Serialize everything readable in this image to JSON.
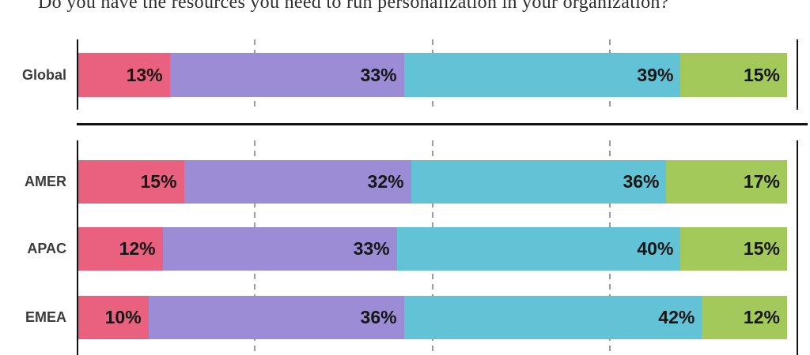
{
  "title": "Do you have the resources you need to run personalization in your organization?",
  "palette": {
    "segment_colors": [
      "#E9617E",
      "#9C8CD6",
      "#62C2D6",
      "#A4C95B"
    ],
    "axis_color": "#121212",
    "gridline_color": "#9B9B9B",
    "category_label_color": "#3B3B3B",
    "value_label_color": "#161616",
    "title_color": "#2E2E2E",
    "background": "#FFFFFF"
  },
  "chart_data": {
    "type": "bar",
    "orientation": "horizontal",
    "stacked": true,
    "units": "percent",
    "title": "Do you have the resources you need to run personalization in your organization?",
    "categories": [
      "Global",
      "AMER",
      "APAC",
      "EMEA"
    ],
    "series": [
      {
        "name": "pink-segment",
        "color": "#E9617E",
        "values": [
          13,
          15,
          12,
          10
        ]
      },
      {
        "name": "purple-segment",
        "color": "#9C8CD6",
        "values": [
          33,
          32,
          33,
          36
        ]
      },
      {
        "name": "teal-segment",
        "color": "#62C2D6",
        "values": [
          39,
          36,
          40,
          42
        ]
      },
      {
        "name": "green-segment",
        "color": "#A4C95B",
        "values": [
          15,
          17,
          15,
          12
        ]
      }
    ],
    "xlim": [
      0,
      100
    ],
    "gridlines_percent": [
      25,
      50,
      75
    ],
    "gridline_style": "dashed",
    "legend": "none",
    "groups": [
      [
        "Global"
      ],
      [
        "AMER",
        "APAC",
        "EMEA"
      ]
    ]
  },
  "rows": [
    {
      "label": "Global",
      "segments": [
        {
          "label": "13%",
          "value": 13,
          "color": "#E9617E"
        },
        {
          "label": "33%",
          "value": 33,
          "color": "#9C8CD6"
        },
        {
          "label": "39%",
          "value": 39,
          "color": "#62C2D6"
        },
        {
          "label": "15%",
          "value": 15,
          "color": "#A4C95B"
        }
      ]
    },
    {
      "label": "AMER",
      "segments": [
        {
          "label": "15%",
          "value": 15,
          "color": "#E9617E"
        },
        {
          "label": "32%",
          "value": 32,
          "color": "#9C8CD6"
        },
        {
          "label": "36%",
          "value": 36,
          "color": "#62C2D6"
        },
        {
          "label": "17%",
          "value": 17,
          "color": "#A4C95B"
        }
      ]
    },
    {
      "label": "APAC",
      "segments": [
        {
          "label": "12%",
          "value": 12,
          "color": "#E9617E"
        },
        {
          "label": "33%",
          "value": 33,
          "color": "#9C8CD6"
        },
        {
          "label": "40%",
          "value": 40,
          "color": "#62C2D6"
        },
        {
          "label": "15%",
          "value": 15,
          "color": "#A4C95B"
        }
      ]
    },
    {
      "label": "EMEA",
      "segments": [
        {
          "label": "10%",
          "value": 10,
          "color": "#E9617E"
        },
        {
          "label": "36%",
          "value": 36,
          "color": "#9C8CD6"
        },
        {
          "label": "42%",
          "value": 42,
          "color": "#62C2D6"
        },
        {
          "label": "12%",
          "value": 12,
          "color": "#A4C95B"
        }
      ]
    }
  ]
}
